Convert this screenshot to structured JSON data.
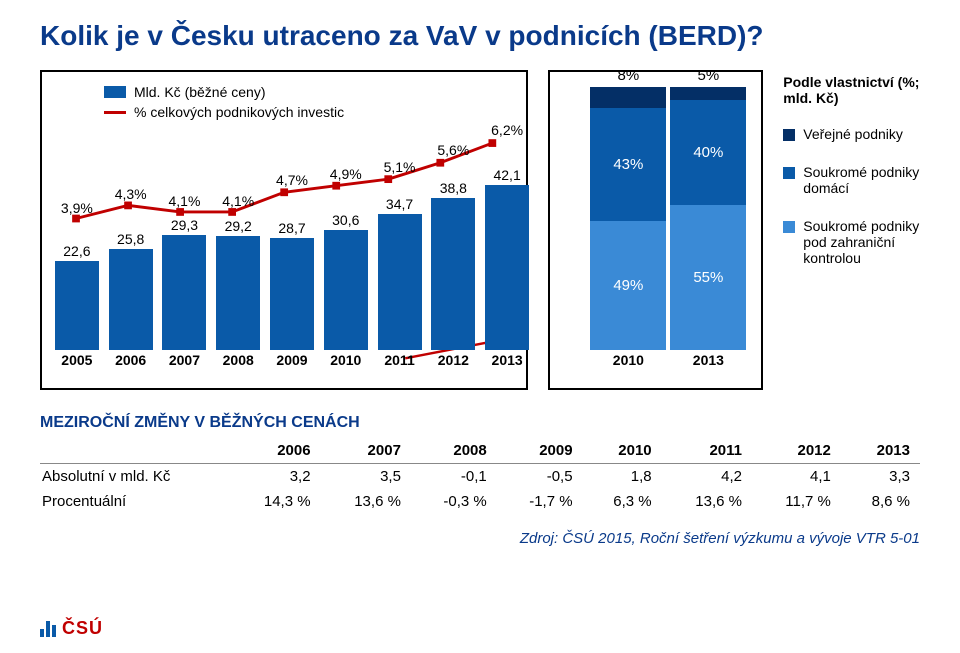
{
  "title": "Kolik je v Česku utraceno za VaV v podnicích (BERD)?",
  "combo": {
    "legend_bar": "Mld. Kč (běžné ceny)",
    "legend_line": "% celkových podnikových investic",
    "years": [
      "2005",
      "2006",
      "2007",
      "2008",
      "2009",
      "2010",
      "2011",
      "2012",
      "2013"
    ],
    "bar_values": [
      22.6,
      25.8,
      29.3,
      29.2,
      28.7,
      30.6,
      34.7,
      38.8,
      42.1
    ],
    "bar_labels": [
      "22,6",
      "25,8",
      "29,3",
      "29,2",
      "28,7",
      "30,6",
      "34,7",
      "38,8",
      "42,1"
    ],
    "bar_color": "#0a5aa8",
    "bar_max": 45,
    "line_values": [
      3.9,
      4.3,
      4.1,
      4.1,
      4.7,
      4.9,
      5.1,
      5.6,
      6.2
    ],
    "line_labels": [
      "3,9%",
      "4,3%",
      "4,1%",
      "4,1%",
      "4,7%",
      "4,9%",
      "5,1%",
      "5,6%",
      "6,2%"
    ],
    "line_color": "#c00000",
    "line_min": 3.6,
    "line_max": 6.6,
    "arrow_color": "#c00000"
  },
  "stack": {
    "title": "Podle vlastnictví (%; mld. Kč)",
    "years": [
      "2010",
      "2013"
    ],
    "segments": [
      {
        "key": "verejne",
        "color": "#042f66"
      },
      {
        "key": "domaci",
        "color": "#0a5aa8"
      },
      {
        "key": "zahranicni",
        "color": "#3a8ad6"
      }
    ],
    "data": {
      "2010": {
        "verejne": "8%",
        "domaci": "43%",
        "zahranicni": "49%",
        "v": [
          8,
          43,
          49
        ]
      },
      "2013": {
        "verejne": "5%",
        "domaci": "40%",
        "zahranicni": "55%",
        "v": [
          5,
          40,
          55
        ]
      }
    },
    "legend": [
      {
        "color": "#042f66",
        "label": "Veřejné podniky"
      },
      {
        "color": "#0a5aa8",
        "label": "Soukromé podniky domácí"
      },
      {
        "color": "#3a8ad6",
        "label": "Soukromé podniky pod zahraniční kontrolou"
      }
    ]
  },
  "table": {
    "title": "MEZIROČNÍ ZMĚNY V BĚŽNÝCH CENÁCH",
    "columns": [
      "",
      "2006",
      "2007",
      "2008",
      "2009",
      "2010",
      "2011",
      "2012",
      "2013"
    ],
    "rows": [
      [
        "Absolutní v mld. Kč",
        "3,2",
        "3,5",
        "-0,1",
        "-0,5",
        "1,8",
        "4,2",
        "4,1",
        "3,3"
      ],
      [
        "Procentuální",
        "14,3 %",
        "13,6 %",
        "-0,3 %",
        "-1,7 %",
        "6,3 %",
        "13,6 %",
        "11,7 %",
        "8,6 %"
      ]
    ]
  },
  "source": "Zdroj: ČSÚ 2015, Roční šetření výzkumu a vývoje VTR 5-01",
  "logo": "ČSÚ"
}
